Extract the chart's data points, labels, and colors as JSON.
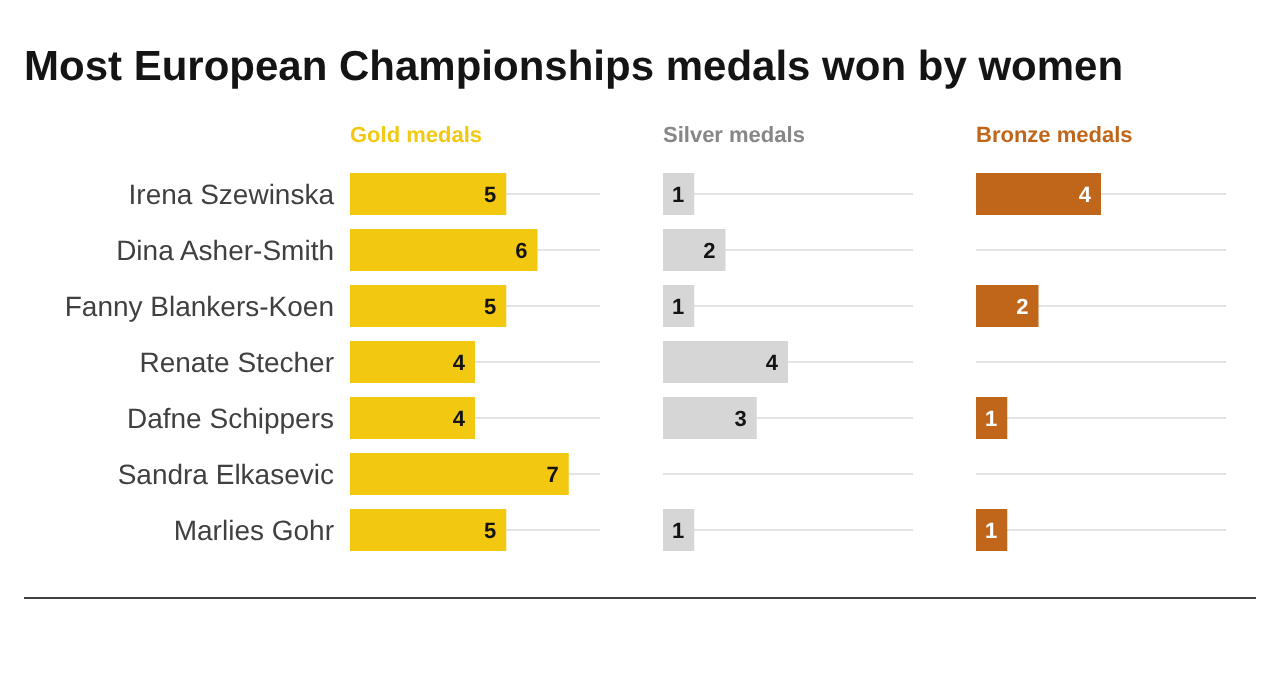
{
  "chart_data": [
    {
      "type": "bar",
      "orientation": "horizontal",
      "title": "Most European Championships medals won by women",
      "subtitle": "Gold medals",
      "categories": [
        "Irena Szewinska",
        "Dina Asher-Smith",
        "Fanny Blankers-Koen",
        "Renate Stecher",
        "Dafne Schippers",
        "Sandra Elkasevic",
        "Marlies Gohr"
      ],
      "values": [
        5,
        6,
        5,
        4,
        4,
        7,
        5
      ],
      "color": "#f2c811",
      "xlim": [
        0,
        8
      ],
      "data_labels": true,
      "grid": "y",
      "tick_labels": "y"
    },
    {
      "type": "bar",
      "orientation": "horizontal",
      "subtitle": "Silver medals",
      "values": [
        1,
        2,
        1,
        4,
        3,
        null,
        1
      ],
      "color": "#d6d6d6",
      "xlim": [
        0,
        8
      ],
      "data_labels": true,
      "grid": "y",
      "tick_labels": false
    },
    {
      "type": "bar",
      "orientation": "horizontal",
      "subtitle": "Bronze medals",
      "values": [
        4,
        null,
        2,
        null,
        1,
        null,
        1
      ],
      "color": "#c0661a",
      "xlim": [
        0,
        8
      ],
      "data_labels": true,
      "grid": "y",
      "tick_labels": false
    }
  ]
}
